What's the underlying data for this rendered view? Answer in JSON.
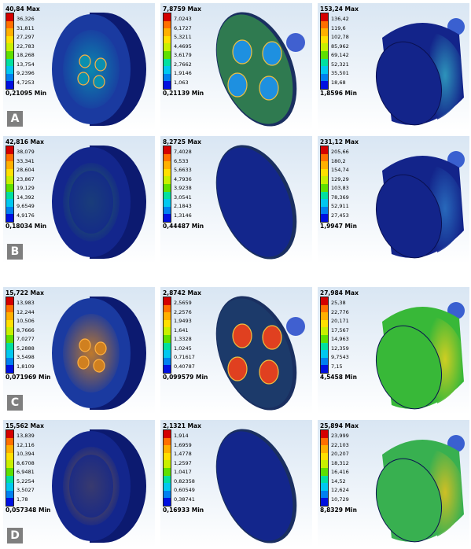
{
  "palette": [
    "#d40000",
    "#ff6f00",
    "#ffb000",
    "#ffe000",
    "#c8f000",
    "#5ee000",
    "#00e0a0",
    "#00c8f0",
    "#0080f0",
    "#0010e0"
  ],
  "rows": [
    {
      "label": "A",
      "cells": [
        {
          "max": "40,84 Max",
          "ticks": [
            "36,326",
            "31,811",
            "27,297",
            "22,783",
            "18,268",
            "13,754",
            "9,2396",
            "4,7253"
          ],
          "min": "0,21095 Min",
          "shape": "disc-holes",
          "base": "#1a3aa0",
          "accent": "#0a8fb0"
        },
        {
          "max": "7,8759 Max",
          "ticks": [
            "7,0243",
            "6,1727",
            "5,3211",
            "4,4695",
            "3,6179",
            "2,7662",
            "1,9146",
            "1,063"
          ],
          "min": "0,21139 Min",
          "shape": "plate-holes",
          "base": "#2f7a50",
          "accent": "#1e90e0"
        },
        {
          "max": "153,24 Max",
          "ticks": [
            "136,42",
            "119,6",
            "102,78",
            "85,962",
            "69,142",
            "52,321",
            "35,501",
            "18,68"
          ],
          "min": "1,8596 Min",
          "shape": "cylinder",
          "base": "#13248a",
          "accent": "#30a0c0"
        }
      ]
    },
    {
      "label": "B",
      "cells": [
        {
          "max": "42,816 Max",
          "ticks": [
            "38,079",
            "33,341",
            "28,604",
            "23,867",
            "19,129",
            "14,392",
            "9,6549",
            "4,9176"
          ],
          "min": "0,18034 Min",
          "shape": "disc-ring",
          "base": "#13268c",
          "accent": "#2d7a4a"
        },
        {
          "max": "8,2725 Max",
          "ticks": [
            "7,4028",
            "6,533",
            "5,6633",
            "4,7936",
            "3,9238",
            "3,0541",
            "2,1843",
            "1,3146"
          ],
          "min": "0,44487 Min",
          "shape": "plate-plain",
          "base": "#13268c",
          "accent": "#1e3ea8"
        },
        {
          "max": "231,12 Max",
          "ticks": [
            "205,66",
            "180,2",
            "154,74",
            "129,29",
            "103,83",
            "78,369",
            "52,911",
            "27,453"
          ],
          "min": "1,9947 Min",
          "shape": "cylinder",
          "base": "#13248a",
          "accent": "#2a70c0"
        }
      ]
    },
    {
      "label": "C",
      "cells": [
        {
          "max": "15,722 Max",
          "ticks": [
            "13,983",
            "12,244",
            "10,506",
            "8,7666",
            "7,0277",
            "5,2888",
            "3,5498",
            "1,8109"
          ],
          "min": "0,071969 Min",
          "shape": "disc-holes",
          "base": "#1a3aa0",
          "accent": "#d08020"
        },
        {
          "max": "2,8742 Max",
          "ticks": [
            "2,5659",
            "2,2576",
            "1,9493",
            "1,641",
            "1,3328",
            "1,0245",
            "0,71617",
            "0,40787"
          ],
          "min": "0,099579 Min",
          "shape": "plate-holes",
          "base": "#1c3a6a",
          "accent": "#e04020"
        },
        {
          "max": "27,984 Max",
          "ticks": [
            "25,38",
            "22,776",
            "20,171",
            "17,567",
            "14,963",
            "12,359",
            "9,7543",
            "7,15"
          ],
          "min": "4,5458 Min",
          "shape": "cylinder",
          "base": "#38b838",
          "accent": "#e0d020"
        }
      ]
    },
    {
      "label": "D",
      "cells": [
        {
          "max": "15,562 Max",
          "ticks": [
            "13,839",
            "12,116",
            "10,394",
            "8,6708",
            "6,9481",
            "5,2254",
            "3,5027",
            "1,78"
          ],
          "min": "0,057348 Min",
          "shape": "disc-ring",
          "base": "#13268c",
          "accent": "#a07020"
        },
        {
          "max": "2,1321 Max",
          "ticks": [
            "1,914",
            "1,6959",
            "1,4778",
            "1,2597",
            "1,0417",
            "0,82358",
            "0,60549",
            "0,38741"
          ],
          "min": "0,16933 Min",
          "shape": "plate-plain",
          "base": "#13268c",
          "accent": "#1a3a90"
        },
        {
          "max": "25,894 Max",
          "ticks": [
            "23,999",
            "22,103",
            "20,207",
            "18,312",
            "16,416",
            "14,52",
            "12,624",
            "10,729"
          ],
          "min": "8,8329 Min",
          "shape": "cylinder",
          "base": "#38b050",
          "accent": "#e0c020"
        }
      ]
    }
  ]
}
